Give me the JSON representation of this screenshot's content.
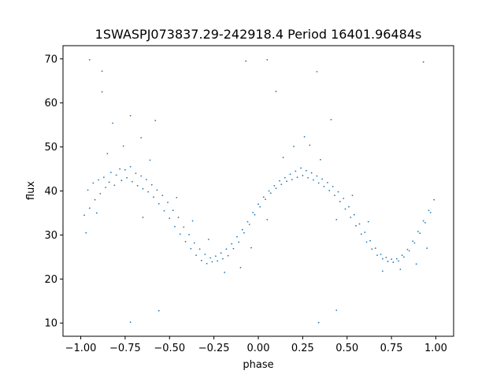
{
  "chart_data": {
    "type": "scatter",
    "title": "1SWASPJ073837.29-242918.4 Period 16401.96484s",
    "xlabel": "phase",
    "ylabel": "flux",
    "xlim": [
      -1.1,
      1.1
    ],
    "ylim": [
      7,
      73
    ],
    "x_ticks": [
      -1.0,
      -0.75,
      -0.5,
      -0.25,
      0.0,
      0.25,
      0.5,
      0.75,
      1.0
    ],
    "x_tick_labels": [
      "−1.00",
      "−0.75",
      "−0.50",
      "−0.25",
      "0.00",
      "0.25",
      "0.50",
      "0.75",
      "1.00"
    ],
    "y_ticks": [
      10,
      20,
      30,
      40,
      50,
      60,
      70
    ],
    "y_tick_labels": [
      "10",
      "20",
      "30",
      "40",
      "50",
      "60",
      "70"
    ],
    "grid": false,
    "marker_color": "#1f77b4",
    "series": [
      {
        "points": [
          [
            -0.98,
            34.5
          ],
          [
            -0.96,
            40.2
          ],
          [
            -0.95,
            36.1
          ],
          [
            -0.93,
            41.8
          ],
          [
            -0.92,
            38.0
          ],
          [
            -0.9,
            42.5
          ],
          [
            -0.89,
            39.4
          ],
          [
            -0.87,
            43.1
          ],
          [
            -0.86,
            40.8
          ],
          [
            -0.84,
            42.0
          ],
          [
            -0.83,
            44.2
          ],
          [
            -0.81,
            41.3
          ],
          [
            -0.8,
            43.6
          ],
          [
            -0.78,
            45.0
          ],
          [
            -0.77,
            42.4
          ],
          [
            -0.75,
            44.8
          ],
          [
            -0.74,
            43.0
          ],
          [
            -0.72,
            45.5
          ],
          [
            -0.71,
            42.1
          ],
          [
            -0.69,
            44.0
          ],
          [
            -0.68,
            41.2
          ],
          [
            -0.66,
            43.4
          ],
          [
            -0.65,
            40.5
          ],
          [
            -0.63,
            42.6
          ],
          [
            -0.62,
            39.8
          ],
          [
            -0.6,
            41.4
          ],
          [
            -0.59,
            38.6
          ],
          [
            -0.57,
            40.2
          ],
          [
            -0.56,
            37.1
          ],
          [
            -0.54,
            39.0
          ],
          [
            -0.53,
            35.5
          ],
          [
            -0.51,
            37.4
          ],
          [
            -0.5,
            33.8
          ],
          [
            -0.48,
            35.6
          ],
          [
            -0.47,
            31.9
          ],
          [
            -0.45,
            34.0
          ],
          [
            -0.44,
            30.2
          ],
          [
            -0.42,
            31.8
          ],
          [
            -0.41,
            28.5
          ],
          [
            -0.39,
            30.1
          ],
          [
            -0.38,
            26.9
          ],
          [
            -0.36,
            28.2
          ],
          [
            -0.35,
            25.4
          ],
          [
            -0.33,
            26.8
          ],
          [
            -0.32,
            24.2
          ],
          [
            -0.3,
            25.6
          ],
          [
            -0.29,
            23.5
          ],
          [
            -0.27,
            24.8
          ],
          [
            -0.26,
            23.9
          ],
          [
            -0.24,
            25.2
          ],
          [
            -0.23,
            24.1
          ],
          [
            -0.21,
            25.9
          ],
          [
            -0.2,
            24.6
          ],
          [
            -0.18,
            26.8
          ],
          [
            -0.17,
            25.3
          ],
          [
            -0.15,
            28.0
          ],
          [
            -0.14,
            26.9
          ],
          [
            -0.12,
            29.6
          ],
          [
            -0.11,
            28.4
          ],
          [
            -0.09,
            31.2
          ],
          [
            -0.08,
            30.5
          ],
          [
            -0.06,
            33.0
          ],
          [
            -0.05,
            32.4
          ],
          [
            -0.03,
            35.1
          ],
          [
            -0.02,
            34.6
          ],
          [
            0.0,
            37.0
          ],
          [
            0.01,
            36.4
          ],
          [
            0.03,
            38.6
          ],
          [
            0.04,
            38.1
          ],
          [
            0.06,
            40.0
          ],
          [
            0.07,
            39.5
          ],
          [
            0.09,
            41.2
          ],
          [
            0.1,
            40.6
          ],
          [
            0.12,
            42.3
          ],
          [
            0.13,
            41.5
          ],
          [
            0.15,
            43.0
          ],
          [
            0.16,
            42.2
          ],
          [
            0.18,
            43.8
          ],
          [
            0.19,
            42.6
          ],
          [
            0.21,
            44.5
          ],
          [
            0.22,
            43.1
          ],
          [
            0.24,
            45.2
          ],
          [
            0.25,
            43.5
          ],
          [
            0.27,
            44.6
          ],
          [
            0.28,
            43.0
          ],
          [
            0.3,
            44.1
          ],
          [
            0.31,
            42.5
          ],
          [
            0.33,
            43.4
          ],
          [
            0.34,
            41.8
          ],
          [
            0.36,
            42.7
          ],
          [
            0.37,
            41.0
          ],
          [
            0.39,
            41.9
          ],
          [
            0.4,
            40.1
          ],
          [
            0.42,
            41.0
          ],
          [
            0.43,
            39.0
          ],
          [
            0.45,
            39.8
          ],
          [
            0.46,
            37.6
          ],
          [
            0.48,
            38.3
          ],
          [
            0.49,
            35.9
          ],
          [
            0.51,
            36.4
          ],
          [
            0.52,
            34.0
          ],
          [
            0.54,
            34.6
          ],
          [
            0.55,
            32.1
          ],
          [
            0.57,
            32.5
          ],
          [
            0.58,
            30.2
          ],
          [
            0.6,
            30.6
          ],
          [
            0.61,
            28.4
          ],
          [
            0.63,
            28.7
          ],
          [
            0.64,
            26.8
          ],
          [
            0.66,
            27.0
          ],
          [
            0.67,
            25.4
          ],
          [
            0.69,
            25.6
          ],
          [
            0.7,
            24.6
          ],
          [
            0.72,
            24.9
          ],
          [
            0.73,
            24.0
          ],
          [
            0.75,
            24.5
          ],
          [
            0.76,
            23.8
          ],
          [
            0.78,
            24.6
          ],
          [
            0.79,
            24.1
          ],
          [
            0.81,
            25.4
          ],
          [
            0.82,
            25.0
          ],
          [
            0.84,
            26.7
          ],
          [
            0.85,
            26.4
          ],
          [
            0.87,
            28.6
          ],
          [
            0.88,
            28.2
          ],
          [
            0.9,
            30.8
          ],
          [
            0.91,
            30.4
          ],
          [
            0.93,
            33.2
          ],
          [
            0.94,
            32.8
          ],
          [
            0.96,
            35.6
          ],
          [
            0.97,
            35.1
          ],
          [
            0.99,
            38.0
          ],
          [
            -0.97,
            30.5
          ],
          [
            -0.91,
            35.0
          ],
          [
            -0.85,
            48.5
          ],
          [
            -0.76,
            50.2
          ],
          [
            -0.66,
            52.1
          ],
          [
            -0.61,
            47.0
          ],
          [
            -0.58,
            56.0
          ],
          [
            -0.82,
            55.4
          ],
          [
            -0.72,
            57.1
          ],
          [
            -0.65,
            34.0
          ],
          [
            -0.46,
            38.5
          ],
          [
            -0.37,
            33.2
          ],
          [
            -0.28,
            29.0
          ],
          [
            -0.19,
            21.5
          ],
          [
            -0.1,
            22.6
          ],
          [
            -0.04,
            27.1
          ],
          [
            0.05,
            33.5
          ],
          [
            0.14,
            47.6
          ],
          [
            0.2,
            50.1
          ],
          [
            0.26,
            52.3
          ],
          [
            0.29,
            50.4
          ],
          [
            0.35,
            47.1
          ],
          [
            0.41,
            56.2
          ],
          [
            0.44,
            33.5
          ],
          [
            0.53,
            39.0
          ],
          [
            0.62,
            33.0
          ],
          [
            0.7,
            21.8
          ],
          [
            0.8,
            22.2
          ],
          [
            0.89,
            23.4
          ],
          [
            0.95,
            27.0
          ],
          [
            -0.95,
            69.8
          ],
          [
            -0.88,
            67.2
          ],
          [
            -0.88,
            62.5
          ],
          [
            -0.72,
            10.2
          ],
          [
            -0.56,
            12.8
          ],
          [
            -0.07,
            69.5
          ],
          [
            0.05,
            69.8
          ],
          [
            0.1,
            62.6
          ],
          [
            0.33,
            67.1
          ],
          [
            0.34,
            10.1
          ],
          [
            0.44,
            12.9
          ],
          [
            0.93,
            69.3
          ]
        ]
      }
    ]
  }
}
